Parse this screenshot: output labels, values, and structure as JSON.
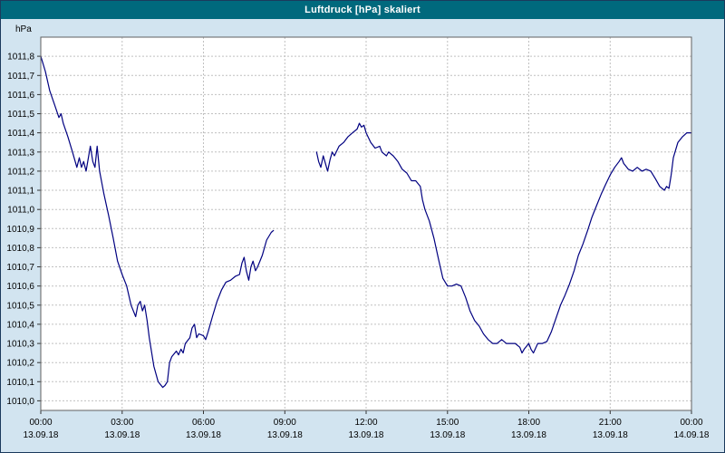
{
  "window": {
    "title": "Luftdruck [hPa] skaliert"
  },
  "colors": {
    "titlebar_bg": "#00697d",
    "titlebar_text": "#ffffff",
    "window_bg": "#d2e4f0",
    "plot_bg": "#ffffff",
    "grid": "#c0c0c0",
    "axis_text": "#000000",
    "plot_border": "#606060",
    "line": "#000080"
  },
  "chart_data": {
    "type": "line",
    "title": "Luftdruck [hPa] skaliert",
    "ylabel": "hPa",
    "xlabel": "",
    "grid": true,
    "legend": "none",
    "ylim": [
      1009.95,
      1011.9
    ],
    "xlim_hours": [
      0,
      24
    ],
    "y_tick_values": [
      1011.8,
      1011.7,
      1011.6,
      1011.5,
      1011.4,
      1011.3,
      1011.2,
      1011.1,
      1011.0,
      1010.9,
      1010.8,
      1010.7,
      1010.6,
      1010.5,
      1010.4,
      1010.3,
      1010.2,
      1010.1,
      1010.0
    ],
    "y_tick_labels": [
      "1011,8",
      "1011,7",
      "1011,6",
      "1011,5",
      "1011,4",
      "1011,3",
      "1011,2",
      "1011,1",
      "1011,0",
      "1010,9",
      "1010,8",
      "1010,7",
      "1010,6",
      "1010,5",
      "1010,4",
      "1010,3",
      "1010,2",
      "1010,1",
      "1010,0"
    ],
    "x_ticks": [
      {
        "hour": 0,
        "time": "00:00",
        "date": "13.09.18"
      },
      {
        "hour": 3,
        "time": "03:00",
        "date": "13.09.18"
      },
      {
        "hour": 6,
        "time": "06:00",
        "date": "13.09.18"
      },
      {
        "hour": 9,
        "time": "09:00",
        "date": "13.09.18"
      },
      {
        "hour": 12,
        "time": "12:00",
        "date": "13.09.18"
      },
      {
        "hour": 15,
        "time": "15:00",
        "date": "13.09.18"
      },
      {
        "hour": 18,
        "time": "18:00",
        "date": "13.09.18"
      },
      {
        "hour": 21,
        "time": "21:00",
        "date": "13.09.18"
      },
      {
        "hour": 24,
        "time": "00:00",
        "date": "14.09.18"
      }
    ],
    "series": [
      {
        "name": "Luftdruck",
        "unit": "hPa",
        "segments": [
          [
            [
              0.0,
              1011.8
            ],
            [
              0.17,
              1011.72
            ],
            [
              0.33,
              1011.62
            ],
            [
              0.5,
              1011.55
            ],
            [
              0.67,
              1011.48
            ],
            [
              0.75,
              1011.5
            ],
            [
              0.83,
              1011.45
            ],
            [
              1.0,
              1011.38
            ],
            [
              1.17,
              1011.3
            ],
            [
              1.33,
              1011.22
            ],
            [
              1.42,
              1011.27
            ],
            [
              1.5,
              1011.22
            ],
            [
              1.58,
              1011.25
            ],
            [
              1.67,
              1011.2
            ],
            [
              1.83,
              1011.33
            ],
            [
              1.92,
              1011.25
            ],
            [
              2.0,
              1011.22
            ],
            [
              2.08,
              1011.33
            ],
            [
              2.17,
              1011.2
            ],
            [
              2.33,
              1011.08
            ],
            [
              2.5,
              1010.97
            ],
            [
              2.67,
              1010.85
            ],
            [
              2.83,
              1010.73
            ],
            [
              3.0,
              1010.66
            ],
            [
              3.17,
              1010.6
            ],
            [
              3.33,
              1010.5
            ],
            [
              3.5,
              1010.44
            ],
            [
              3.58,
              1010.5
            ],
            [
              3.67,
              1010.52
            ],
            [
              3.75,
              1010.47
            ],
            [
              3.83,
              1010.5
            ],
            [
              3.92,
              1010.42
            ],
            [
              4.0,
              1010.33
            ],
            [
              4.17,
              1010.18
            ],
            [
              4.33,
              1010.1
            ],
            [
              4.5,
              1010.07
            ],
            [
              4.58,
              1010.08
            ],
            [
              4.67,
              1010.1
            ],
            [
              4.75,
              1010.2
            ],
            [
              4.83,
              1010.23
            ],
            [
              5.0,
              1010.26
            ],
            [
              5.08,
              1010.24
            ],
            [
              5.17,
              1010.27
            ],
            [
              5.25,
              1010.25
            ],
            [
              5.33,
              1010.3
            ],
            [
              5.5,
              1010.33
            ],
            [
              5.58,
              1010.38
            ],
            [
              5.67,
              1010.4
            ],
            [
              5.75,
              1010.33
            ],
            [
              5.83,
              1010.35
            ],
            [
              6.0,
              1010.34
            ],
            [
              6.08,
              1010.32
            ],
            [
              6.17,
              1010.36
            ],
            [
              6.33,
              1010.44
            ],
            [
              6.5,
              1010.52
            ],
            [
              6.67,
              1010.58
            ],
            [
              6.83,
              1010.62
            ],
            [
              7.0,
              1010.63
            ],
            [
              7.17,
              1010.65
            ],
            [
              7.33,
              1010.66
            ],
            [
              7.42,
              1010.72
            ],
            [
              7.5,
              1010.75
            ],
            [
              7.58,
              1010.68
            ],
            [
              7.67,
              1010.63
            ],
            [
              7.75,
              1010.7
            ],
            [
              7.83,
              1010.73
            ],
            [
              7.92,
              1010.68
            ],
            [
              8.0,
              1010.7
            ],
            [
              8.17,
              1010.76
            ],
            [
              8.33,
              1010.84
            ],
            [
              8.5,
              1010.88
            ],
            [
              8.58,
              1010.89
            ]
          ],
          [
            [
              10.17,
              1011.3
            ],
            [
              10.25,
              1011.25
            ],
            [
              10.33,
              1011.22
            ],
            [
              10.42,
              1011.28
            ],
            [
              10.5,
              1011.24
            ],
            [
              10.58,
              1011.2
            ],
            [
              10.67,
              1011.26
            ],
            [
              10.75,
              1011.3
            ],
            [
              10.83,
              1011.28
            ],
            [
              11.0,
              1011.33
            ],
            [
              11.17,
              1011.35
            ],
            [
              11.33,
              1011.38
            ],
            [
              11.5,
              1011.4
            ],
            [
              11.67,
              1011.42
            ],
            [
              11.75,
              1011.45
            ],
            [
              11.83,
              1011.43
            ],
            [
              11.92,
              1011.44
            ],
            [
              12.0,
              1011.4
            ],
            [
              12.17,
              1011.35
            ],
            [
              12.33,
              1011.32
            ],
            [
              12.5,
              1011.33
            ],
            [
              12.58,
              1011.3
            ],
            [
              12.75,
              1011.28
            ],
            [
              12.83,
              1011.3
            ],
            [
              13.0,
              1011.28
            ],
            [
              13.17,
              1011.25
            ],
            [
              13.33,
              1011.21
            ],
            [
              13.5,
              1011.19
            ],
            [
              13.67,
              1011.15
            ],
            [
              13.83,
              1011.15
            ],
            [
              14.0,
              1011.12
            ],
            [
              14.08,
              1011.05
            ],
            [
              14.17,
              1011.0
            ],
            [
              14.33,
              1010.94
            ],
            [
              14.5,
              1010.85
            ],
            [
              14.67,
              1010.74
            ],
            [
              14.83,
              1010.64
            ],
            [
              15.0,
              1010.6
            ],
            [
              15.17,
              1010.6
            ],
            [
              15.33,
              1010.61
            ],
            [
              15.5,
              1010.6
            ],
            [
              15.67,
              1010.54
            ],
            [
              15.83,
              1010.47
            ],
            [
              16.0,
              1010.42
            ],
            [
              16.17,
              1010.39
            ],
            [
              16.33,
              1010.35
            ],
            [
              16.5,
              1010.32
            ],
            [
              16.67,
              1010.3
            ],
            [
              16.83,
              1010.3
            ],
            [
              17.0,
              1010.32
            ],
            [
              17.17,
              1010.3
            ],
            [
              17.33,
              1010.3
            ],
            [
              17.5,
              1010.3
            ],
            [
              17.67,
              1010.28
            ],
            [
              17.75,
              1010.25
            ],
            [
              17.83,
              1010.27
            ],
            [
              18.0,
              1010.3
            ],
            [
              18.08,
              1010.27
            ],
            [
              18.17,
              1010.25
            ],
            [
              18.33,
              1010.3
            ],
            [
              18.5,
              1010.3
            ],
            [
              18.67,
              1010.31
            ],
            [
              18.83,
              1010.36
            ],
            [
              19.0,
              1010.43
            ],
            [
              19.17,
              1010.5
            ],
            [
              19.33,
              1010.55
            ],
            [
              19.5,
              1010.61
            ],
            [
              19.67,
              1010.68
            ],
            [
              19.83,
              1010.76
            ],
            [
              20.0,
              1010.82
            ],
            [
              20.17,
              1010.89
            ],
            [
              20.33,
              1010.96
            ],
            [
              20.5,
              1011.02
            ],
            [
              20.67,
              1011.08
            ],
            [
              20.83,
              1011.13
            ],
            [
              21.0,
              1011.18
            ],
            [
              21.17,
              1011.22
            ],
            [
              21.33,
              1011.25
            ],
            [
              21.42,
              1011.27
            ],
            [
              21.5,
              1011.24
            ],
            [
              21.67,
              1011.21
            ],
            [
              21.83,
              1011.2
            ],
            [
              22.0,
              1011.22
            ],
            [
              22.17,
              1011.2
            ],
            [
              22.33,
              1011.21
            ],
            [
              22.5,
              1011.2
            ],
            [
              22.67,
              1011.16
            ],
            [
              22.83,
              1011.12
            ],
            [
              23.0,
              1011.1
            ],
            [
              23.08,
              1011.12
            ],
            [
              23.17,
              1011.11
            ],
            [
              23.25,
              1011.18
            ],
            [
              23.33,
              1011.27
            ],
            [
              23.5,
              1011.35
            ],
            [
              23.67,
              1011.38
            ],
            [
              23.83,
              1011.4
            ],
            [
              24.0,
              1011.4
            ]
          ]
        ]
      }
    ]
  }
}
